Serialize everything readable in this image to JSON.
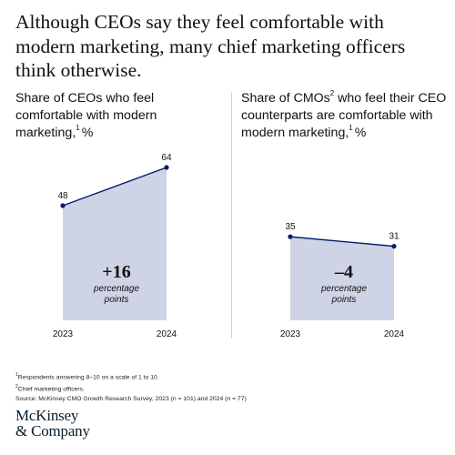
{
  "headline": "Although CEOs say they feel comfortable with modern marketing, many chief marketing officers think otherwise.",
  "panels": [
    {
      "title_main": "Share of CEOs who feel comfortable with modern marketing,",
      "title_sup": "1",
      "title_unit": "%",
      "change_value": "+16",
      "change_line1": "percentage",
      "change_line2": "points"
    },
    {
      "title_main": "Share of CMOs",
      "title_sup1": "2",
      "title_rest": " who feel their CEO counterparts are comfortable with modern marketing,",
      "title_sup2": "1",
      "title_unit": "%",
      "change_value": "–4",
      "change_line1": "percentage",
      "change_line2": "points"
    }
  ],
  "chart_data": [
    {
      "type": "area",
      "title": "Share of CEOs who feel comfortable with modern marketing, %",
      "categories": [
        "2023",
        "2024"
      ],
      "values": [
        48,
        64
      ],
      "data_labels": [
        "48",
        "64"
      ],
      "annotation": "+16 percentage points"
    },
    {
      "type": "area",
      "title": "Share of CMOs who feel their CEO counterparts are comfortable with modern marketing, %",
      "categories": [
        "2023",
        "2024"
      ],
      "values": [
        35,
        31
      ],
      "data_labels": [
        "35",
        "31"
      ],
      "annotation": "–4 percentage points"
    }
  ],
  "footnotes": {
    "note1_sup": "1",
    "note1": "Respondents answering 8–10 on a scale of 1 to 10.",
    "note2_sup": "2",
    "note2": "Chief marketing officers.",
    "source": "Source: McKinsey CMO Growth Research Survey, 2023 (n = 101) and 2024 (n = 77)"
  },
  "logo": {
    "line1": "McKinsey",
    "line2": "& Company"
  },
  "colors": {
    "area_fill": "#cfd3e6",
    "line": "#051c6e",
    "text": "#111111",
    "divider": "#d4d4d4"
  }
}
